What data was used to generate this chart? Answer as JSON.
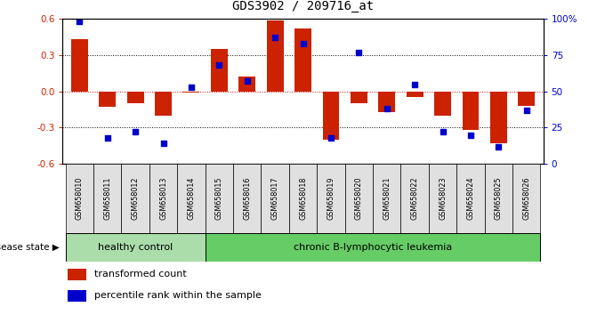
{
  "title": "GDS3902 / 209716_at",
  "samples": [
    "GSM658010",
    "GSM658011",
    "GSM658012",
    "GSM658013",
    "GSM658014",
    "GSM658015",
    "GSM658016",
    "GSM658017",
    "GSM658018",
    "GSM658019",
    "GSM658020",
    "GSM658021",
    "GSM658022",
    "GSM658023",
    "GSM658024",
    "GSM658025",
    "GSM658026"
  ],
  "bar_values": [
    0.43,
    -0.13,
    -0.1,
    -0.2,
    -0.01,
    0.35,
    0.12,
    0.59,
    0.52,
    -0.4,
    -0.1,
    -0.17,
    -0.05,
    -0.2,
    -0.32,
    -0.43,
    -0.12
  ],
  "percentile_values": [
    98,
    18,
    22,
    14,
    53,
    68,
    57,
    87,
    83,
    18,
    77,
    38,
    55,
    22,
    20,
    12,
    37
  ],
  "group_labels": [
    "healthy control",
    "chronic B-lymphocytic leukemia"
  ],
  "hc_color": "#aaddaa",
  "leuk_color": "#66cc66",
  "hc_count": 5,
  "bar_color": "#cc2200",
  "percentile_color": "#0000cc",
  "ylim": [
    -0.6,
    0.6
  ],
  "yticks_left": [
    -0.6,
    -0.3,
    0.0,
    0.3,
    0.6
  ],
  "yticks_right": [
    0,
    25,
    50,
    75,
    100
  ],
  "background_color": "#ffffff",
  "legend_items": [
    "transformed count",
    "percentile rank within the sample"
  ],
  "disease_state_label": "disease state"
}
